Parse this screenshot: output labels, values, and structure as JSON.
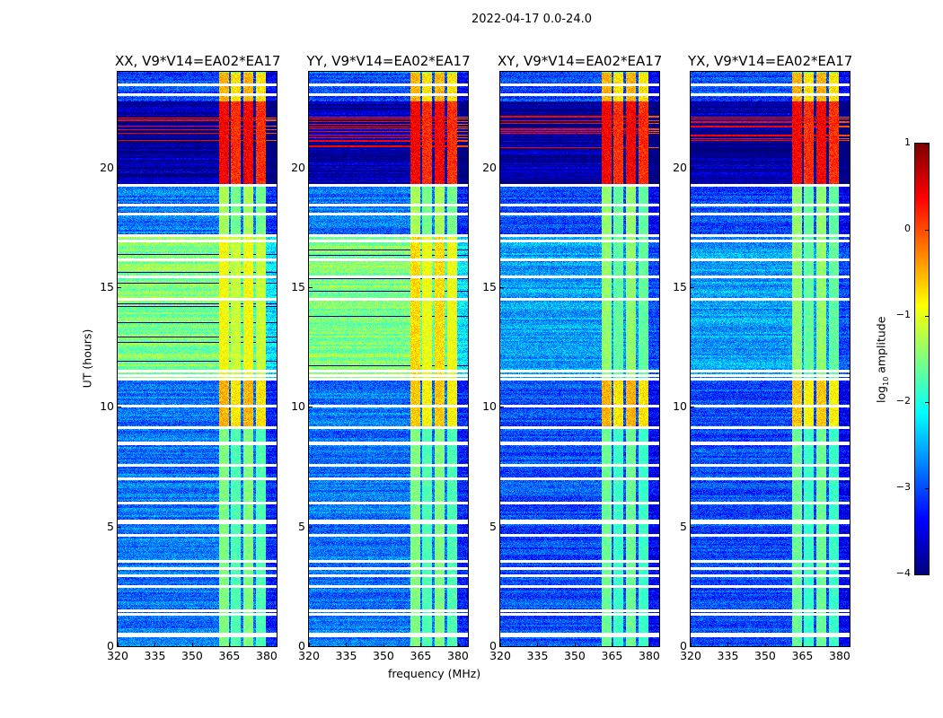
{
  "chart_data": {
    "type": "heatmap",
    "title": "2022-04-17 0.0-24.0",
    "xlabel": "frequency (MHz)",
    "ylabel": "UT (hours)",
    "xlim": [
      320,
      384
    ],
    "ylim": [
      0,
      24
    ],
    "xticks": [
      "320",
      "335",
      "350",
      "365",
      "380"
    ],
    "yticks": [
      "0",
      "5",
      "10",
      "15",
      "20"
    ],
    "colorbar": {
      "label": "log10 amplitude",
      "label_main": "log",
      "label_sub": "10",
      "label_rest": " amplitude",
      "range": [
        -4,
        1
      ],
      "ticks": [
        "1",
        "0",
        "−1",
        "−2",
        "−3",
        "−4"
      ],
      "colormap": "jet"
    },
    "rfi_subbands_mhz": [
      [
        360.5,
        364.5
      ],
      [
        365.5,
        369.5
      ],
      [
        370.5,
        374.5
      ],
      [
        375.5,
        379.5
      ]
    ],
    "flagged_ut_hours": [
      0.5,
      0.55,
      1.4,
      1.55,
      2.55,
      3.0,
      3.3,
      3.6,
      4.7,
      5.2,
      5.3,
      6.05,
      7.05,
      7.6,
      8.5,
      8.55,
      9.2,
      10.1,
      11.2,
      11.35,
      11.55,
      14.55,
      15.5,
      16.2,
      17.0,
      17.2,
      18.1,
      18.5,
      19.3,
      23.1,
      23.5
    ],
    "panels": [
      {
        "title": "XX, V9*V14=EA02*EA17",
        "segments": [
          {
            "t": [
              0,
              9.2
            ],
            "bg": -2.8,
            "band": -1.6
          },
          {
            "t": [
              9.2,
              11.15
            ],
            "bg": -2.8,
            "band": -0.6
          },
          {
            "t": [
              11.15,
              17.2
            ],
            "bg": -1.5,
            "band": -1.0
          },
          {
            "t": [
              17.2,
              19.3
            ],
            "bg": -2.8,
            "band": -1.4
          },
          {
            "t": [
              19.3,
              22.8
            ],
            "bg": -3.7,
            "band": 0.3
          },
          {
            "t": [
              22.8,
              24
            ],
            "bg": -3.0,
            "band": -0.6
          }
        ]
      },
      {
        "title": "YY, V9*V14=EA02*EA17",
        "segments": [
          {
            "t": [
              0,
              9.2
            ],
            "bg": -2.8,
            "band": -1.6
          },
          {
            "t": [
              9.2,
              11.15
            ],
            "bg": -2.8,
            "band": -0.7
          },
          {
            "t": [
              11.15,
              17.2
            ],
            "bg": -1.5,
            "band": -0.8
          },
          {
            "t": [
              17.2,
              19.3
            ],
            "bg": -2.8,
            "band": -1.4
          },
          {
            "t": [
              19.3,
              22.8
            ],
            "bg": -3.7,
            "band": 0.3
          },
          {
            "t": [
              22.8,
              24
            ],
            "bg": -3.0,
            "band": -0.6
          }
        ]
      },
      {
        "title": "XY, V9*V14=EA02*EA17",
        "segments": [
          {
            "t": [
              0,
              9.2
            ],
            "bg": -3.0,
            "band": -1.7
          },
          {
            "t": [
              9.2,
              11.15
            ],
            "bg": -3.0,
            "band": -0.6
          },
          {
            "t": [
              11.15,
              17.2
            ],
            "bg": -2.6,
            "band": -1.5
          },
          {
            "t": [
              17.2,
              19.3
            ],
            "bg": -3.0,
            "band": -1.5
          },
          {
            "t": [
              19.3,
              22.8
            ],
            "bg": -3.7,
            "band": 0.3
          },
          {
            "t": [
              22.8,
              24
            ],
            "bg": -3.0,
            "band": -0.6
          }
        ]
      },
      {
        "title": "YX, V9*V14=EA02*EA17",
        "segments": [
          {
            "t": [
              0,
              9.2
            ],
            "bg": -3.0,
            "band": -1.7
          },
          {
            "t": [
              9.2,
              11.15
            ],
            "bg": -3.0,
            "band": -0.7
          },
          {
            "t": [
              11.15,
              17.2
            ],
            "bg": -2.6,
            "band": -1.5
          },
          {
            "t": [
              17.2,
              19.3
            ],
            "bg": -3.0,
            "band": -1.5
          },
          {
            "t": [
              19.3,
              22.8
            ],
            "bg": -3.7,
            "band": 0.3
          },
          {
            "t": [
              22.8,
              24
            ],
            "bg": -3.0,
            "band": -0.6
          }
        ]
      }
    ]
  }
}
